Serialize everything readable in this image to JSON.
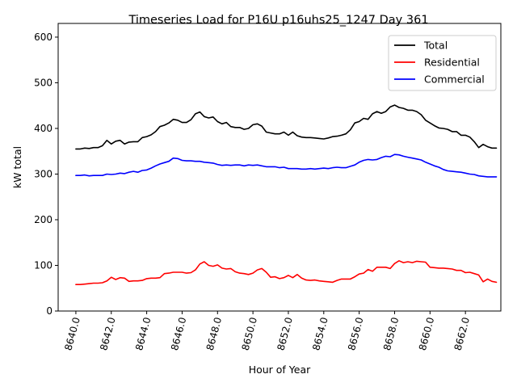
{
  "chart_data": {
    "type": "line",
    "title": "Timeseries Load for P16U p16uhs25_1247  Day 361",
    "xlabel": "Hour of Year",
    "ylabel": "kW total",
    "xlim": [
      8639.0,
      8664.0
    ],
    "ylim": [
      0,
      630
    ],
    "xticks": [
      8640,
      8642,
      8644,
      8646,
      8648,
      8650,
      8652,
      8654,
      8656,
      8658,
      8660,
      8662
    ],
    "xtick_labels": [
      "8640.0",
      "8642.0",
      "8644.0",
      "8646.0",
      "8648.0",
      "8650.0",
      "8652.0",
      "8654.0",
      "8656.0",
      "8658.0",
      "8660.0",
      "8662.0"
    ],
    "yticks": [
      0,
      100,
      200,
      300,
      400,
      500,
      600
    ],
    "ytick_labels": [
      "0",
      "100",
      "200",
      "300",
      "400",
      "500",
      "600"
    ],
    "grid": false,
    "legend_position": "top-right",
    "x": [
      8640.0,
      8640.25,
      8640.5,
      8640.75,
      8641.0,
      8641.25,
      8641.5,
      8641.75,
      8642.0,
      8642.25,
      8642.5,
      8642.75,
      8643.0,
      8643.25,
      8643.5,
      8643.75,
      8644.0,
      8644.25,
      8644.5,
      8644.75,
      8645.0,
      8645.25,
      8645.5,
      8645.75,
      8646.0,
      8646.25,
      8646.5,
      8646.75,
      8647.0,
      8647.25,
      8647.5,
      8647.75,
      8648.0,
      8648.25,
      8648.5,
      8648.75,
      8649.0,
      8649.25,
      8649.5,
      8649.75,
      8650.0,
      8650.25,
      8650.5,
      8650.75,
      8651.0,
      8651.25,
      8651.5,
      8651.75,
      8652.0,
      8652.25,
      8652.5,
      8652.75,
      8653.0,
      8653.25,
      8653.5,
      8653.75,
      8654.0,
      8654.25,
      8654.5,
      8654.75,
      8655.0,
      8655.25,
      8655.5,
      8655.75,
      8656.0,
      8656.25,
      8656.5,
      8656.75,
      8657.0,
      8657.25,
      8657.5,
      8657.75,
      8658.0,
      8658.25,
      8658.5,
      8658.75,
      8659.0,
      8659.25,
      8659.5,
      8659.75,
      8660.0,
      8660.25,
      8660.5,
      8660.75,
      8661.0,
      8661.25,
      8661.5,
      8661.75,
      8662.0,
      8662.25,
      8662.5,
      8662.75,
      8663.0,
      8663.25,
      8663.5,
      8663.75
    ],
    "series": [
      {
        "name": "Total",
        "color": "#000000",
        "values": [
          355,
          355,
          357,
          356,
          358,
          358,
          362,
          374,
          366,
          372,
          374,
          366,
          370,
          371,
          371,
          380,
          382,
          386,
          393,
          404,
          407,
          412,
          420,
          418,
          413,
          413,
          419,
          432,
          436,
          426,
          423,
          425,
          415,
          410,
          413,
          404,
          402,
          402,
          398,
          400,
          408,
          410,
          405,
          392,
          390,
          388,
          388,
          392,
          385,
          392,
          384,
          381,
          380,
          380,
          379,
          378,
          377,
          379,
          382,
          383,
          385,
          388,
          397,
          412,
          415,
          422,
          420,
          432,
          437,
          433,
          437,
          447,
          451,
          446,
          444,
          440,
          440,
          437,
          430,
          418,
          412,
          406,
          401,
          400,
          398,
          393,
          393,
          385,
          385,
          381,
          371,
          358,
          365,
          360,
          357,
          357
        ]
      },
      {
        "name": "Residential",
        "color": "#ff0000",
        "values": [
          58,
          58,
          59,
          60,
          61,
          61,
          62,
          66,
          74,
          69,
          73,
          72,
          65,
          66,
          66,
          67,
          71,
          72,
          72,
          73,
          82,
          83,
          85,
          85,
          85,
          83,
          84,
          90,
          103,
          108,
          100,
          98,
          101,
          94,
          92,
          93,
          86,
          83,
          82,
          80,
          83,
          90,
          93,
          85,
          74,
          75,
          71,
          73,
          78,
          73,
          80,
          72,
          68,
          67,
          68,
          66,
          65,
          64,
          63,
          67,
          70,
          70,
          70,
          75,
          81,
          83,
          91,
          87,
          96,
          96,
          96,
          93,
          104,
          110,
          106,
          108,
          106,
          109,
          108,
          107,
          96,
          95,
          94,
          94,
          93,
          92,
          89,
          89,
          84,
          85,
          82,
          79,
          64,
          70,
          65,
          63
        ]
      },
      {
        "name": "Commercial",
        "color": "#0000ff",
        "values": [
          297,
          297,
          298,
          296,
          297,
          297,
          297,
          300,
          299,
          300,
          302,
          301,
          304,
          306,
          304,
          308,
          309,
          313,
          318,
          322,
          325,
          328,
          335,
          334,
          330,
          329,
          329,
          328,
          328,
          326,
          325,
          324,
          321,
          319,
          320,
          319,
          320,
          320,
          318,
          320,
          319,
          320,
          318,
          316,
          316,
          316,
          314,
          315,
          312,
          312,
          312,
          311,
          311,
          312,
          311,
          312,
          313,
          312,
          314,
          315,
          314,
          314,
          317,
          320,
          326,
          330,
          332,
          331,
          332,
          336,
          339,
          338,
          343,
          342,
          339,
          337,
          335,
          333,
          331,
          326,
          322,
          318,
          315,
          310,
          307,
          306,
          305,
          304,
          302,
          300,
          299,
          296,
          295,
          294,
          294,
          294
        ]
      }
    ]
  }
}
